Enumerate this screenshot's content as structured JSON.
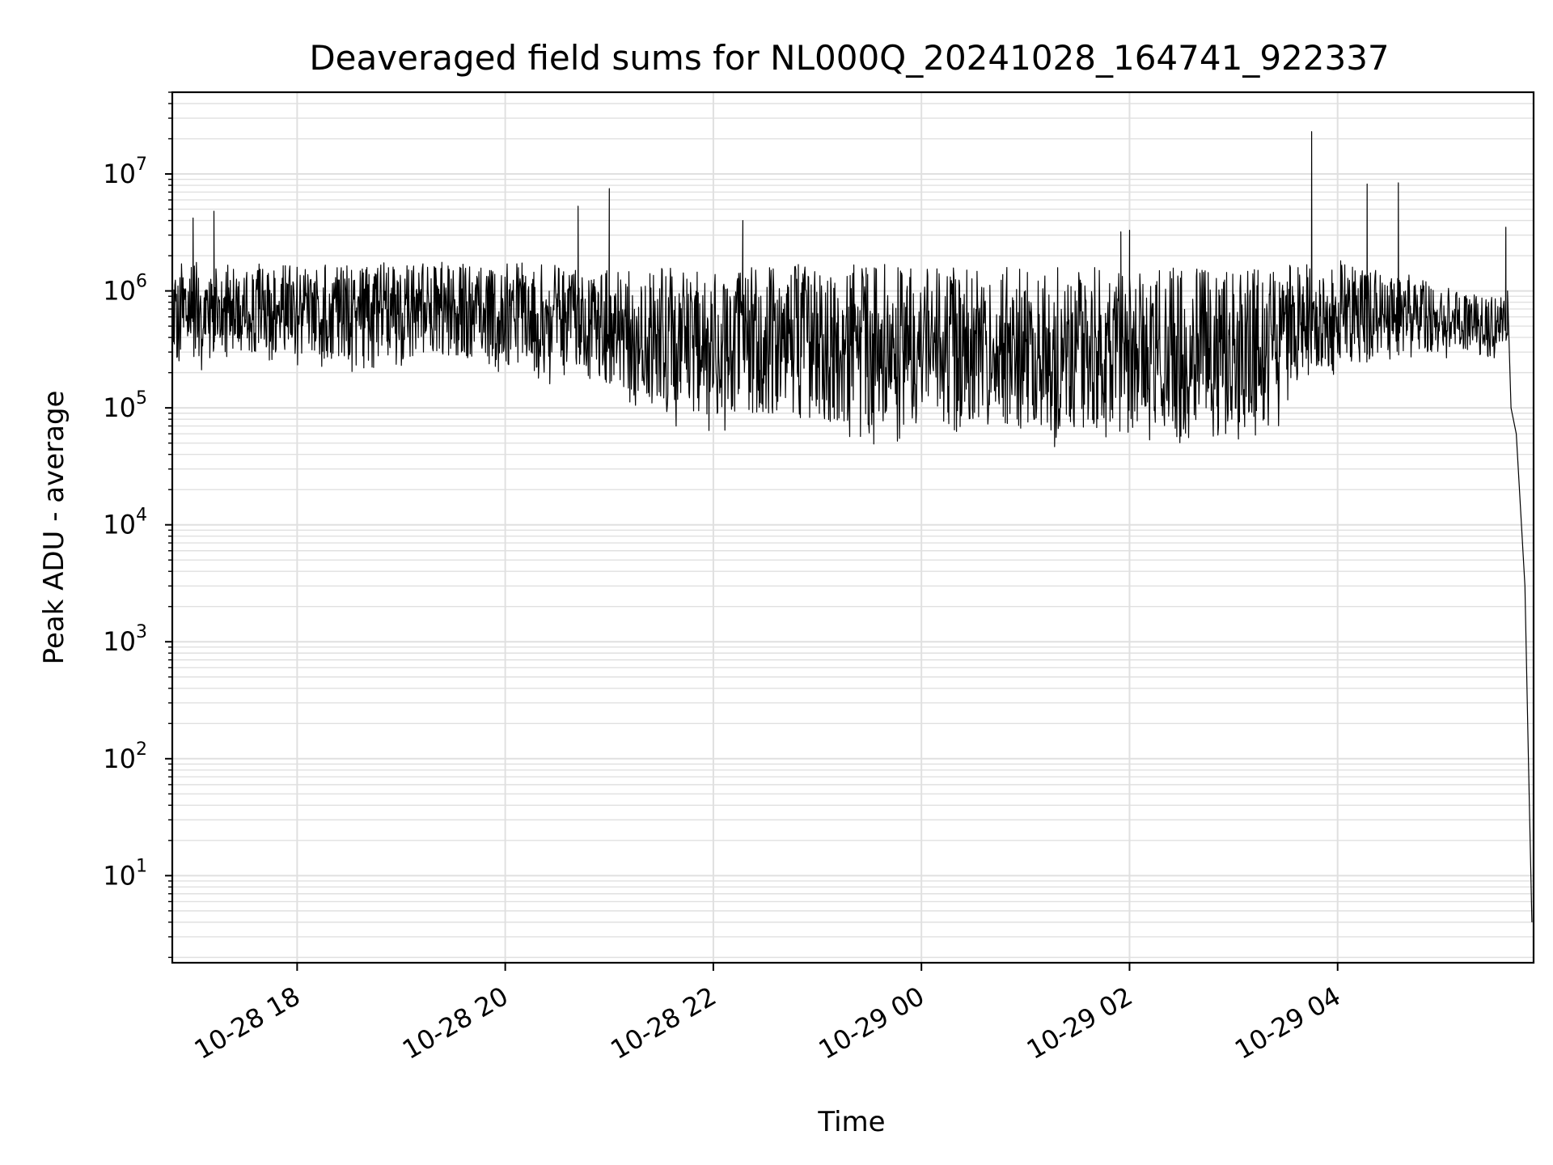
{
  "chart_data": {
    "type": "line",
    "title": "Deaveraged field sums for NL000Q_20241028_164741_922337",
    "xlabel": "Time",
    "ylabel": "Peak ADU - average",
    "y_scale": "log",
    "ylim": [
      1.8,
      50000000
    ],
    "xlim": [
      "10-28 16:48",
      "10-29 05:53"
    ],
    "grid": true,
    "grid_minor": true,
    "line_color": "#000000",
    "grid_color": "#e0e0e0",
    "x_ticks": [
      {
        "label": "10-28 18",
        "time": "10-28 18:00"
      },
      {
        "label": "10-28 20",
        "time": "10-28 20:00"
      },
      {
        "label": "10-28 22",
        "time": "10-28 22:00"
      },
      {
        "label": "10-29 00",
        "time": "10-29 00:00"
      },
      {
        "label": "10-29 02",
        "time": "10-29 02:00"
      },
      {
        "label": "10-29 04",
        "time": "10-29 04:00"
      }
    ],
    "y_ticks": [
      {
        "base": "10",
        "exp": "1",
        "value": 10
      },
      {
        "base": "10",
        "exp": "2",
        "value": 100
      },
      {
        "base": "10",
        "exp": "3",
        "value": 1000
      },
      {
        "base": "10",
        "exp": "4",
        "value": 10000
      },
      {
        "base": "10",
        "exp": "5",
        "value": 100000
      },
      {
        "base": "10",
        "exp": "6",
        "value": 1000000
      },
      {
        "base": "10",
        "exp": "7",
        "value": 10000000
      }
    ],
    "series": [
      {
        "envelope": [
          {
            "t": "10-28 16:48",
            "low": 170000,
            "high": 1800000
          },
          {
            "t": "10-28 17:30",
            "low": 250000,
            "high": 1700000
          },
          {
            "t": "10-28 18:30",
            "low": 200000,
            "high": 1800000
          },
          {
            "t": "10-28 19:30",
            "low": 220000,
            "high": 1800000
          },
          {
            "t": "10-28 20:30",
            "low": 150000,
            "high": 1700000
          },
          {
            "t": "10-28 21:00",
            "low": 120000,
            "high": 1600000
          },
          {
            "t": "10-28 21:30",
            "low": 70000,
            "high": 1600000
          },
          {
            "t": "10-28 22:15",
            "low": 60000,
            "high": 1600000
          },
          {
            "t": "10-28 22:40",
            "low": 60000,
            "high": 1700000
          },
          {
            "t": "10-28 23:30",
            "low": 45000,
            "high": 1700000
          },
          {
            "t": "10-29 00:30",
            "low": 45000,
            "high": 1600000
          },
          {
            "t": "10-29 01:30",
            "low": 45000,
            "high": 1600000
          },
          {
            "t": "10-29 02:30",
            "low": 45000,
            "high": 1600000
          },
          {
            "t": "10-29 03:20",
            "low": 50000,
            "high": 1600000
          },
          {
            "t": "10-29 03:40",
            "low": 150000,
            "high": 2000000
          },
          {
            "t": "10-29 04:30",
            "low": 250000,
            "high": 1600000
          },
          {
            "t": "10-29 05:10",
            "low": 250000,
            "high": 1000000
          },
          {
            "t": "10-29 05:35",
            "low": 250000,
            "high": 900000
          }
        ],
        "spikes": [
          {
            "t": "10-28 17:00",
            "value": 4200000
          },
          {
            "t": "10-28 17:12",
            "value": 4800000
          },
          {
            "t": "10-28 20:42",
            "value": 5300000
          },
          {
            "t": "10-28 21:00",
            "value": 7500000
          },
          {
            "t": "10-28 22:17",
            "value": 4000000
          },
          {
            "t": "10-29 01:55",
            "value": 3200000
          },
          {
            "t": "10-29 02:00",
            "value": 3300000
          },
          {
            "t": "10-29 03:45",
            "value": 23000000
          },
          {
            "t": "10-29 04:17",
            "value": 8200000
          },
          {
            "t": "10-29 04:35",
            "value": 8400000
          },
          {
            "t": "10-29 05:37",
            "value": 3500000
          }
        ],
        "tail": [
          {
            "t": "10-29 05:38",
            "value": 1000000
          },
          {
            "t": "10-29 05:40",
            "value": 100000
          },
          {
            "t": "10-29 05:43",
            "value": 60000
          },
          {
            "t": "10-29 05:46",
            "value": 10000
          },
          {
            "t": "10-29 05:48",
            "value": 3000
          },
          {
            "t": "10-29 05:50",
            "value": 100
          },
          {
            "t": "10-29 05:52",
            "value": 4
          }
        ]
      }
    ]
  }
}
